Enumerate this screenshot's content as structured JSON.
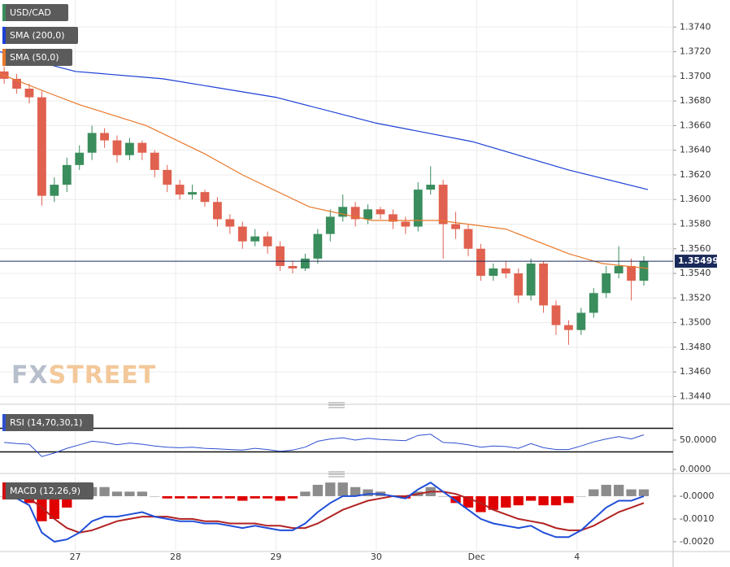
{
  "chart_data": [
    {
      "type": "candlestick",
      "name": "USD/CAD",
      "x": [
        7,
        10,
        13,
        16,
        19,
        22,
        25,
        28,
        31,
        34,
        37,
        40,
        43,
        46,
        49,
        52,
        55,
        58,
        61,
        64,
        67,
        70,
        73,
        76,
        79,
        82,
        85,
        88,
        91,
        94,
        97,
        100,
        103,
        106,
        109,
        112,
        115,
        118,
        121,
        124,
        127,
        130,
        133,
        136,
        139,
        142,
        145,
        148,
        151,
        154,
        157,
        160
      ],
      "open": [
        1.3704,
        1.3698,
        1.369,
        1.3683,
        1.3603,
        1.3612,
        1.3628,
        1.3638,
        1.3654,
        1.3648,
        1.3636,
        1.3646,
        1.3638,
        1.3624,
        1.3612,
        1.3604,
        1.3606,
        1.3598,
        1.3584,
        1.3578,
        1.3566,
        1.357,
        1.3562,
        1.3546,
        1.3544,
        1.3552,
        1.3572,
        1.3586,
        1.3594,
        1.3584,
        1.3592,
        1.3588,
        1.3582,
        1.3578,
        1.3608,
        1.3612,
        1.358,
        1.3576,
        1.356,
        1.3538,
        1.3544,
        1.354,
        1.3522,
        1.3548,
        1.3514,
        1.3498,
        1.3494,
        1.3508,
        1.3524,
        1.354,
        1.3546,
        1.3534
      ],
      "high": [
        1.3708,
        1.3702,
        1.3694,
        1.3688,
        1.3618,
        1.3634,
        1.3644,
        1.366,
        1.3658,
        1.3652,
        1.365,
        1.3648,
        1.364,
        1.3628,
        1.3616,
        1.3612,
        1.3608,
        1.3602,
        1.3588,
        1.3582,
        1.3576,
        1.3574,
        1.3566,
        1.355,
        1.3556,
        1.3576,
        1.3592,
        1.3604,
        1.3598,
        1.3596,
        1.3594,
        1.3592,
        1.3586,
        1.3614,
        1.3627,
        1.3616,
        1.359,
        1.358,
        1.3564,
        1.3548,
        1.355,
        1.3544,
        1.3552,
        1.355,
        1.3518,
        1.3502,
        1.3512,
        1.3528,
        1.3546,
        1.3562,
        1.3552,
        1.3554
      ],
      "low": [
        1.3694,
        1.3686,
        1.3678,
        1.3595,
        1.3598,
        1.3606,
        1.3624,
        1.3632,
        1.3642,
        1.363,
        1.3632,
        1.3632,
        1.3618,
        1.3606,
        1.36,
        1.36,
        1.3594,
        1.3578,
        1.3572,
        1.356,
        1.3562,
        1.3556,
        1.3542,
        1.354,
        1.3542,
        1.3548,
        1.3566,
        1.3582,
        1.3578,
        1.358,
        1.3584,
        1.3576,
        1.3572,
        1.3574,
        1.3604,
        1.3552,
        1.3568,
        1.3554,
        1.3534,
        1.3534,
        1.3536,
        1.3516,
        1.3518,
        1.3508,
        1.349,
        1.3482,
        1.349,
        1.3504,
        1.352,
        1.3536,
        1.3518,
        1.353
      ],
      "close": [
        1.3698,
        1.369,
        1.3683,
        1.3603,
        1.3612,
        1.3628,
        1.3638,
        1.3654,
        1.3648,
        1.3636,
        1.3646,
        1.3638,
        1.3624,
        1.3612,
        1.3604,
        1.3606,
        1.3598,
        1.3584,
        1.3578,
        1.3566,
        1.357,
        1.3562,
        1.3546,
        1.3544,
        1.3552,
        1.3572,
        1.3586,
        1.3594,
        1.3584,
        1.3592,
        1.3588,
        1.3582,
        1.3578,
        1.3608,
        1.3612,
        1.358,
        1.3576,
        1.356,
        1.3538,
        1.3544,
        1.354,
        1.3522,
        1.3548,
        1.3514,
        1.3498,
        1.3494,
        1.3508,
        1.3524,
        1.354,
        1.3546,
        1.3534,
        1.355
      ],
      "up_color": "#3a8d5c",
      "down_color": "#e0614f",
      "legend_color": "#3a8d5c",
      "lines": [
        {
          "name": "SMA (200,0)",
          "color": "#1c3fd6",
          "x": [
            6,
            24,
            45,
            72,
            96,
            119,
            142,
            161
          ],
          "values": [
            1.372,
            1.3704,
            1.3698,
            1.3683,
            1.3662,
            1.3647,
            1.3624,
            1.3608
          ]
        },
        {
          "name": "SMA (50,0)",
          "color": "#e8782a",
          "x": [
            6,
            18,
            25,
            41,
            55,
            64,
            80,
            95,
            111,
            127,
            142,
            150,
            161
          ],
          "values": [
            1.3702,
            1.3686,
            1.3677,
            1.366,
            1.3637,
            1.362,
            1.3594,
            1.3583,
            1.3583,
            1.3576,
            1.3556,
            1.3548,
            1.3544
          ]
        }
      ],
      "last_price": 1.35499,
      "last_price_color": "#1a2a5a",
      "watermark": {
        "fx": "FX",
        "street": "STREET"
      },
      "xlim": [
        6,
        167
      ],
      "xticks": [
        {
          "value": 24,
          "label": "27"
        },
        {
          "value": 48,
          "label": "28"
        },
        {
          "value": 72,
          "label": "29"
        },
        {
          "value": 96,
          "label": "30"
        },
        {
          "value": 120,
          "label": "Dec"
        },
        {
          "value": 144,
          "label": "4"
        }
      ],
      "ylim": [
        1.3435,
        1.3762
      ],
      "yticks": [
        {
          "value": 1.344,
          "label": "1.3440"
        },
        {
          "value": 1.346,
          "label": "1.3460"
        },
        {
          "value": 1.348,
          "label": "1.3480"
        },
        {
          "value": 1.35,
          "label": "1.3500"
        },
        {
          "value": 1.352,
          "label": "1.3520"
        },
        {
          "value": 1.354,
          "label": "1.3540"
        },
        {
          "value": 1.356,
          "label": "1.3560"
        },
        {
          "value": 1.358,
          "label": "1.3580"
        },
        {
          "value": 1.36,
          "label": "1.3600"
        },
        {
          "value": 1.362,
          "label": "1.3620"
        },
        {
          "value": 1.364,
          "label": "1.3640"
        },
        {
          "value": 1.366,
          "label": "1.3660"
        },
        {
          "value": 1.368,
          "label": "1.3680"
        },
        {
          "value": 1.37,
          "label": "1.3700"
        },
        {
          "value": 1.372,
          "label": "1.3720"
        },
        {
          "value": 1.374,
          "label": "1.3740"
        }
      ],
      "grid": true
    },
    {
      "type": "line",
      "x": [
        7,
        10,
        13,
        16,
        19,
        22,
        25,
        28,
        31,
        34,
        37,
        40,
        43,
        46,
        49,
        52,
        55,
        58,
        61,
        64,
        67,
        70,
        73,
        76,
        79,
        82,
        85,
        88,
        91,
        94,
        97,
        100,
        103,
        106,
        109,
        112,
        115,
        118,
        121,
        124,
        127,
        130,
        133,
        136,
        139,
        142,
        145,
        148,
        151,
        154,
        157,
        160
      ],
      "series": [
        {
          "name": "RSI (14,70,30,1)",
          "color": "#2f4fd0",
          "values": [
            46,
            44,
            43,
            22,
            28,
            36,
            42,
            48,
            46,
            42,
            45,
            43,
            40,
            38,
            37,
            38,
            36,
            35,
            34,
            33,
            36,
            34,
            31,
            33,
            38,
            48,
            52,
            54,
            50,
            53,
            51,
            50,
            49,
            58,
            60,
            46,
            45,
            42,
            38,
            40,
            39,
            36,
            44,
            37,
            34,
            34,
            40,
            47,
            52,
            56,
            52,
            59
          ]
        }
      ],
      "levels": [
        70,
        30
      ],
      "xlim": [
        6,
        167
      ],
      "ylim": [
        -4,
        104
      ],
      "yticks": [
        {
          "value": 0,
          "label": "0.0000"
        },
        {
          "value": 50,
          "label": "50.0000"
        }
      ]
    },
    {
      "type": "macd",
      "title": "MACD (12,26,9)",
      "legend_color": "#d01010",
      "x": [
        7,
        10,
        13,
        16,
        19,
        22,
        25,
        28,
        31,
        34,
        37,
        40,
        43,
        46,
        49,
        52,
        55,
        58,
        61,
        64,
        67,
        70,
        73,
        76,
        79,
        82,
        85,
        88,
        91,
        94,
        97,
        100,
        103,
        106,
        109,
        112,
        115,
        118,
        121,
        124,
        127,
        130,
        133,
        136,
        139,
        142,
        145,
        148,
        151,
        154,
        157,
        160
      ],
      "macd": {
        "color": "#1f4ed8",
        "values": [
          0,
          -0.0001,
          -0.0004,
          -0.0016,
          -0.002,
          -0.0019,
          -0.0016,
          -0.0011,
          -0.0009,
          -0.0009,
          -0.0008,
          -0.0007,
          -0.0009,
          -0.001,
          -0.0011,
          -0.0011,
          -0.0012,
          -0.0012,
          -0.0013,
          -0.0014,
          -0.0013,
          -0.0014,
          -0.0015,
          -0.0015,
          -0.0012,
          -0.0007,
          -0.0003,
          0,
          0,
          0.0001,
          0.0001,
          0,
          -0.0001,
          0.0003,
          0.0006,
          0.0002,
          -0.0002,
          -0.0006,
          -0.001,
          -0.0012,
          -0.0013,
          -0.0014,
          -0.0013,
          -0.0016,
          -0.0018,
          -0.0018,
          -0.0015,
          -0.001,
          -0.0005,
          -0.0002,
          -0.0002,
          0
        ]
      },
      "signal": {
        "color": "#b22222",
        "values": [
          0,
          0,
          -0.0001,
          -0.0005,
          -0.001,
          -0.0014,
          -0.0016,
          -0.0015,
          -0.0013,
          -0.0011,
          -0.001,
          -0.0009,
          -0.0009,
          -0.0009,
          -0.001,
          -0.001,
          -0.0011,
          -0.0011,
          -0.0012,
          -0.0012,
          -0.0012,
          -0.0013,
          -0.0013,
          -0.0014,
          -0.0014,
          -0.0012,
          -0.0009,
          -0.0006,
          -0.0004,
          -0.0002,
          -0.0001,
          0,
          0,
          0.0001,
          0.0002,
          0.0002,
          0.0001,
          -0.0001,
          -0.0003,
          -0.0006,
          -0.0008,
          -0.001,
          -0.0011,
          -0.0012,
          -0.0014,
          -0.0015,
          -0.0015,
          -0.0013,
          -0.001,
          -0.0007,
          -0.0005,
          -0.0003
        ]
      },
      "histogram": {
        "up_color": "#8c8c8c",
        "down_color": "#e00000",
        "values": [
          0,
          -0.0001,
          -0.0003,
          -0.0011,
          -0.001,
          -0.0005,
          0,
          0.0004,
          0.0004,
          0.0002,
          0.0002,
          0.0002,
          0,
          -0.0001,
          -0.0001,
          -0.0001,
          -0.0001,
          -0.0001,
          -0.0001,
          -0.0002,
          -0.0001,
          -0.0001,
          -0.0002,
          -0.0001,
          0.0002,
          0.0005,
          0.0006,
          0.0006,
          0.0004,
          0.0003,
          0.0002,
          0,
          -0.0001,
          0.0002,
          0.0004,
          0,
          -0.0003,
          -0.0005,
          -0.0007,
          -0.0006,
          -0.0005,
          -0.0004,
          -0.0002,
          -0.0004,
          -0.0004,
          -0.0003,
          0,
          0.0003,
          0.0005,
          0.0005,
          0.0003,
          0.0003
        ]
      },
      "xlim": [
        6,
        167
      ],
      "ylim": [
        -0.00236,
        0.00082
      ],
      "yticks": [
        {
          "value": 0,
          "label": "-0.0000"
        },
        {
          "value": -0.001,
          "label": "-0.0010"
        },
        {
          "value": -0.002,
          "label": "-0.0020"
        }
      ]
    }
  ]
}
